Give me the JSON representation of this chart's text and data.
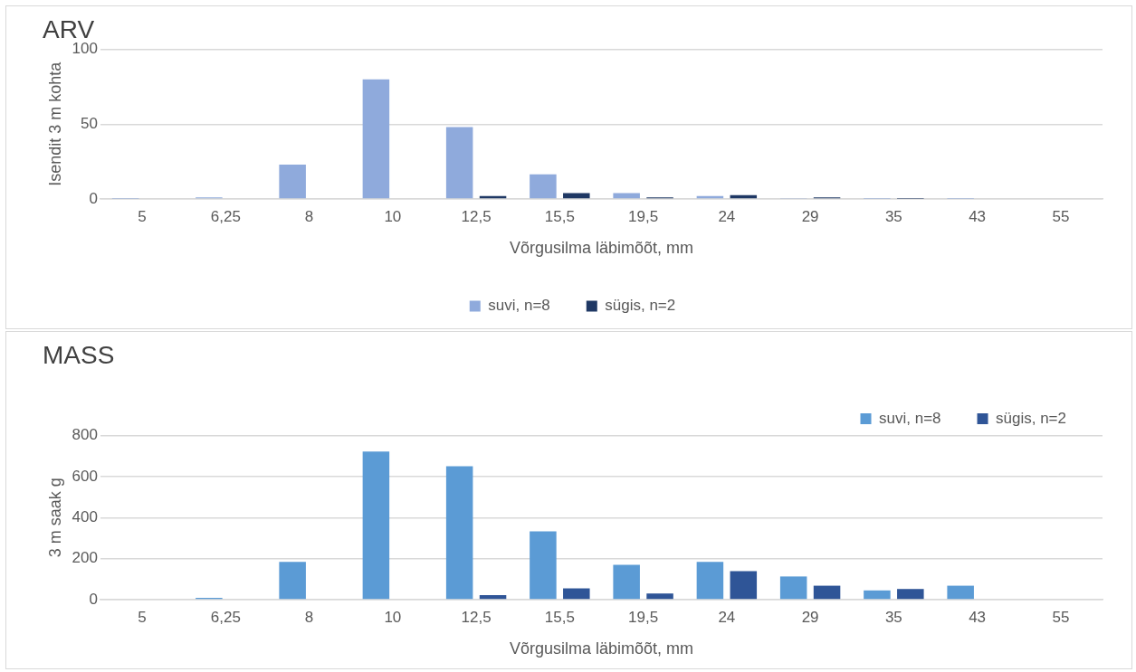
{
  "chart_data": [
    {
      "type": "bar",
      "title": "ARV",
      "xlabel": "Võrgusilma läbimõõt, mm",
      "ylabel": "Isendit 3 m kohta",
      "categories": [
        "5",
        "6,25",
        "8",
        "10",
        "12,5",
        "15,5",
        "19,5",
        "24",
        "29",
        "35",
        "43",
        "55"
      ],
      "series": [
        {
          "name": "suvi, n=8",
          "color": "#8faadc",
          "values": [
            0.2,
            1,
            23,
            80,
            48,
            16.5,
            4,
            2,
            0.3,
            0.2,
            0.1,
            0
          ]
        },
        {
          "name": "sügis, n=2",
          "color": "#1f3864",
          "values": [
            0,
            0,
            0,
            0,
            2,
            4,
            1,
            2.5,
            1,
            0.2,
            0,
            0
          ]
        }
      ],
      "ylim": [
        0,
        100
      ],
      "yticks": [
        0,
        50,
        100
      ],
      "grid": "y",
      "legend": "bottom"
    },
    {
      "type": "bar",
      "title": "MASS",
      "xlabel": "Võrgusilma läbimõõt, mm",
      "ylabel": "3 m saak g",
      "categories": [
        "5",
        "6,25",
        "8",
        "10",
        "12,5",
        "15,5",
        "19,5",
        "24",
        "29",
        "35",
        "43",
        "55"
      ],
      "series": [
        {
          "name": "suvi, n=8",
          "color": "#5b9bd5",
          "values": [
            0,
            9,
            184,
            722,
            650,
            333,
            170,
            184,
            113,
            45,
            68,
            0
          ]
        },
        {
          "name": "sügis, n=2",
          "color": "#2f5597",
          "values": [
            0,
            0,
            0,
            0,
            22,
            55,
            30,
            139,
            68,
            52,
            0,
            0
          ]
        }
      ],
      "ylim": [
        0,
        800
      ],
      "yticks": [
        0,
        200,
        400,
        600,
        800
      ],
      "grid": "y",
      "legend": "top right"
    }
  ]
}
